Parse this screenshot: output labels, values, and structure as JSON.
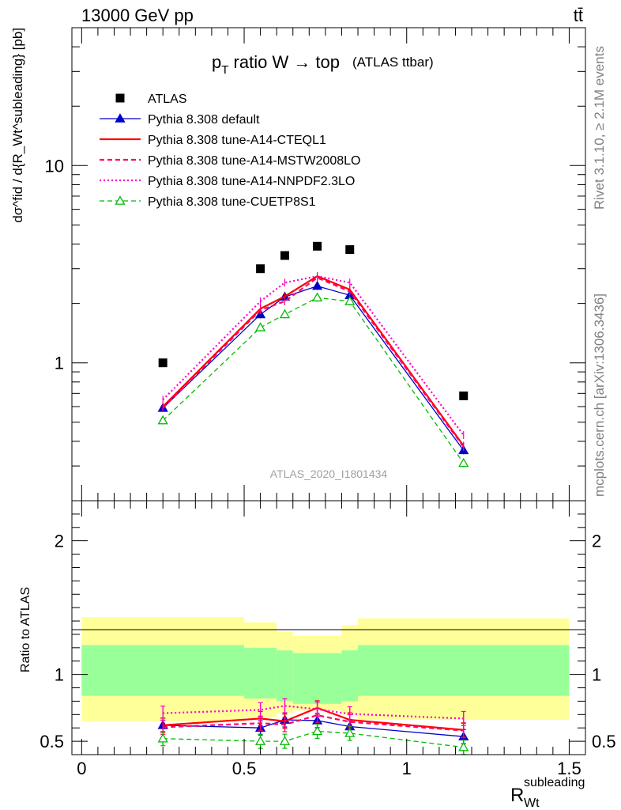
{
  "header": {
    "left": "13000 GeV pp",
    "right": "tt̄"
  },
  "side_labels": {
    "rivet": "Rivet 3.1.10, ≥ 2.1M events",
    "mcplots": "mcplots.cern.ch [arXiv:1306.3436]"
  },
  "chart_data": {
    "type": "line",
    "title_main": "p",
    "title_sub": "T",
    "title_rest": " ratio W → top",
    "title_tag": "(ATLAS ttbar)",
    "watermark": "ATLAS_2020_I1801434",
    "ylabel_top": "dσ^fid / d{R_Wt^subleading} [pb]",
    "ylabel_bottom": "Ratio to ATLAS",
    "xlabel": "R",
    "xlabel_sub": "Wt",
    "xlabel_sup": "subleading",
    "xlim": [
      -0.03,
      1.55
    ],
    "upper_ylim": [
      0.2,
      50
    ],
    "upper_scale": "log",
    "lower_ylim": [
      0.4,
      2.3
    ],
    "x_ticks": [
      0,
      0.5,
      1,
      1.5
    ],
    "x_tick_labels": [
      "0",
      "0.5",
      "1",
      "1.5"
    ],
    "upper_y_ticks": [
      1,
      10
    ],
    "upper_y_tick_labels": [
      "1",
      "10"
    ],
    "lower_y_ticks": [
      0.5,
      1,
      2
    ],
    "lower_y_tick_labels": [
      "0.5",
      "1",
      "2"
    ],
    "data": {
      "name": "ATLAS",
      "x": [
        0.25,
        0.55,
        0.625,
        0.725,
        0.825,
        1.175
      ],
      "y": [
        1.0,
        3.0,
        3.5,
        3.9,
        3.75,
        0.68
      ]
    },
    "bands": {
      "edges": [
        0.0,
        0.5,
        0.6,
        0.65,
        0.8,
        0.85,
        1.5
      ],
      "inner_lo": [
        0.84,
        0.82,
        0.8,
        0.78,
        0.8,
        0.84
      ],
      "inner_hi": [
        1.22,
        1.2,
        1.18,
        1.16,
        1.18,
        1.22
      ],
      "outer_lo": [
        0.65,
        0.68,
        0.71,
        0.73,
        0.7,
        0.66
      ],
      "outer_hi": [
        1.43,
        1.39,
        1.32,
        1.29,
        1.37,
        1.42
      ],
      "inner_color": "#99ff99",
      "outer_color": "#ffff99"
    },
    "series": [
      {
        "name": "Pythia 8.308 default",
        "color": "#0000cc",
        "dash": "",
        "width": 1.3,
        "marker": "triangle",
        "x": [
          0.25,
          0.55,
          0.625,
          0.725,
          0.825,
          1.175
        ],
        "y": [
          0.59,
          1.76,
          2.16,
          2.45,
          2.2,
          0.36
        ],
        "ratio": [
          0.62,
          0.6,
          0.66,
          0.655,
          0.61,
          0.535
        ]
      },
      {
        "name": "Pythia 8.308 tune-A14-CTEQL1",
        "color": "#ff0000",
        "dash": "",
        "width": 2.2,
        "marker": "none",
        "x": [
          0.25,
          0.55,
          0.625,
          0.725,
          0.825,
          1.175
        ],
        "y": [
          0.6,
          1.88,
          2.17,
          2.75,
          2.35,
          0.38
        ],
        "ratio": [
          0.62,
          0.67,
          0.65,
          0.75,
          0.66,
          0.585
        ]
      },
      {
        "name": "Pythia 8.308 tune-A14-MSTW2008LO",
        "color": "#ff0066",
        "dash": "6,4",
        "width": 2.2,
        "marker": "none",
        "x": [
          0.25,
          0.55,
          0.625,
          0.725,
          0.825,
          1.175
        ],
        "y": [
          0.59,
          1.85,
          2.05,
          2.7,
          2.3,
          0.375
        ],
        "ratio": [
          0.605,
          0.635,
          0.625,
          0.695,
          0.645,
          0.58
        ]
      },
      {
        "name": "Pythia 8.308 tune-A14-NNPDF2.3LO",
        "color": "#ff00cc",
        "dash": "2,3",
        "width": 2.2,
        "marker": "none",
        "x": [
          0.25,
          0.55,
          0.625,
          0.725,
          0.825,
          1.175
        ],
        "y": [
          0.65,
          2.05,
          2.55,
          2.75,
          2.55,
          0.43
        ],
        "ratio": [
          0.71,
          0.735,
          0.765,
          0.74,
          0.705,
          0.67
        ]
      },
      {
        "name": "Pythia 8.308 tune-CUETP8S1",
        "color": "#00bb00",
        "dash": "6,4",
        "width": 1.3,
        "marker": "open-triangle",
        "x": [
          0.25,
          0.55,
          0.625,
          0.725,
          0.825,
          1.175
        ],
        "y": [
          0.51,
          1.51,
          1.76,
          2.14,
          2.05,
          0.31
        ],
        "ratio": [
          0.52,
          0.5,
          0.5,
          0.575,
          0.56,
          0.455
        ]
      }
    ]
  }
}
